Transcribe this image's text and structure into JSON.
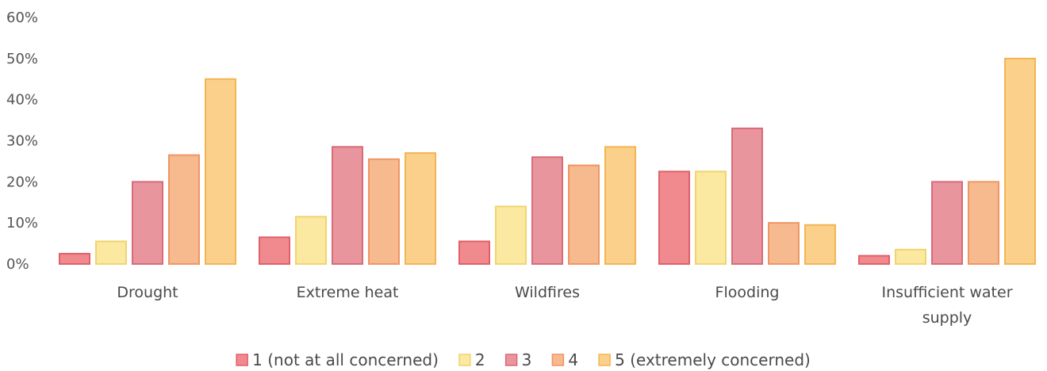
{
  "chart_data": {
    "type": "bar",
    "title": "",
    "xlabel": "",
    "ylabel": "",
    "ylim": [
      0,
      60
    ],
    "y_ticks": [
      "0%",
      "10%",
      "20%",
      "30%",
      "40%",
      "50%",
      "60%"
    ],
    "y_tick_values": [
      0,
      10,
      20,
      30,
      40,
      50,
      60
    ],
    "grid": false,
    "legend_position": "bottom",
    "categories": [
      [
        "Drought"
      ],
      [
        "Extreme heat"
      ],
      [
        "Wildfires"
      ],
      [
        "Flooding"
      ],
      [
        "Insufficient water",
        "supply"
      ]
    ],
    "series": [
      {
        "name": "1 (not at all concerned)",
        "values": [
          2.5,
          6.5,
          5.5,
          22.5,
          2
        ],
        "color": "#f08a8e",
        "stroke": "#e0606a"
      },
      {
        "name": "2",
        "values": [
          5.5,
          11.5,
          14,
          22.5,
          3.5
        ],
        "color": "#fbe9a2",
        "stroke": "#f1d46e"
      },
      {
        "name": "3",
        "values": [
          20,
          28.5,
          26,
          33,
          20
        ],
        "color": "#e8959d",
        "stroke": "#d96b79"
      },
      {
        "name": "4",
        "values": [
          26.5,
          25.5,
          24,
          10,
          20
        ],
        "color": "#f7b98e",
        "stroke": "#ef9665"
      },
      {
        "name": "5 (extremely concerned)",
        "values": [
          45,
          27,
          28.5,
          9.5,
          50
        ],
        "color": "#fbd08a",
        "stroke": "#f3b553"
      }
    ]
  }
}
